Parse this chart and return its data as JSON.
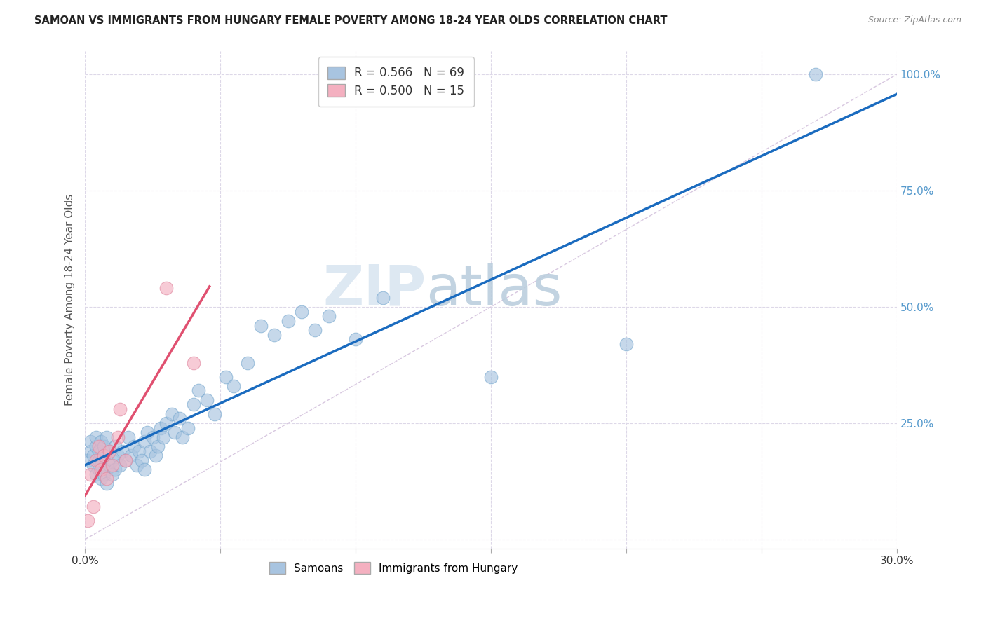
{
  "title": "SAMOAN VS IMMIGRANTS FROM HUNGARY FEMALE POVERTY AMONG 18-24 YEAR OLDS CORRELATION CHART",
  "source": "Source: ZipAtlas.com",
  "ylabel": "Female Poverty Among 18-24 Year Olds",
  "xlim": [
    0.0,
    0.3
  ],
  "ylim": [
    -0.02,
    1.05
  ],
  "xticks": [
    0.0,
    0.05,
    0.1,
    0.15,
    0.2,
    0.25,
    0.3
  ],
  "xticklabels": [
    "0.0%",
    "",
    "",
    "",
    "",
    "",
    "30.0%"
  ],
  "ytick_positions": [
    0.0,
    0.25,
    0.5,
    0.75,
    1.0
  ],
  "yticklabels": [
    "",
    "25.0%",
    "50.0%",
    "75.0%",
    "100.0%"
  ],
  "samoans_x": [
    0.001,
    0.002,
    0.002,
    0.003,
    0.003,
    0.004,
    0.004,
    0.004,
    0.005,
    0.005,
    0.005,
    0.006,
    0.006,
    0.006,
    0.007,
    0.007,
    0.007,
    0.008,
    0.008,
    0.008,
    0.009,
    0.009,
    0.01,
    0.01,
    0.011,
    0.011,
    0.012,
    0.013,
    0.014,
    0.015,
    0.016,
    0.017,
    0.018,
    0.019,
    0.02,
    0.021,
    0.022,
    0.022,
    0.023,
    0.024,
    0.025,
    0.026,
    0.027,
    0.028,
    0.029,
    0.03,
    0.032,
    0.033,
    0.035,
    0.036,
    0.038,
    0.04,
    0.042,
    0.045,
    0.048,
    0.052,
    0.055,
    0.06,
    0.065,
    0.07,
    0.075,
    0.08,
    0.085,
    0.09,
    0.1,
    0.11,
    0.15,
    0.2,
    0.27
  ],
  "samoans_y": [
    0.17,
    0.19,
    0.21,
    0.16,
    0.18,
    0.14,
    0.2,
    0.22,
    0.15,
    0.17,
    0.19,
    0.13,
    0.16,
    0.21,
    0.14,
    0.18,
    0.2,
    0.12,
    0.15,
    0.22,
    0.16,
    0.19,
    0.14,
    0.17,
    0.15,
    0.2,
    0.18,
    0.16,
    0.19,
    0.17,
    0.22,
    0.18,
    0.2,
    0.16,
    0.19,
    0.17,
    0.21,
    0.15,
    0.23,
    0.19,
    0.22,
    0.18,
    0.2,
    0.24,
    0.22,
    0.25,
    0.27,
    0.23,
    0.26,
    0.22,
    0.24,
    0.29,
    0.32,
    0.3,
    0.27,
    0.35,
    0.33,
    0.38,
    0.46,
    0.44,
    0.47,
    0.49,
    0.45,
    0.48,
    0.43,
    0.52,
    0.35,
    0.42,
    1.0
  ],
  "hungary_x": [
    0.001,
    0.002,
    0.003,
    0.004,
    0.005,
    0.006,
    0.007,
    0.008,
    0.009,
    0.01,
    0.012,
    0.013,
    0.015,
    0.03,
    0.04
  ],
  "hungary_y": [
    0.04,
    0.14,
    0.07,
    0.17,
    0.2,
    0.15,
    0.18,
    0.13,
    0.19,
    0.16,
    0.22,
    0.28,
    0.17,
    0.54,
    0.38
  ],
  "samoan_color": "#a8c4e0",
  "samoan_edge_color": "#7aaad0",
  "hungary_color": "#f4b0c0",
  "hungary_edge_color": "#e088a0",
  "samoan_line_color": "#1a6bbf",
  "hungary_line_color": "#e05070",
  "diagonal_color": "#d8c8e0",
  "R_samoan": "0.566",
  "N_samoan": "69",
  "R_hungary": "0.500",
  "N_hungary": "15",
  "legend_label_samoan": "Samoans",
  "legend_label_hungary": "Immigrants from Hungary",
  "watermark_zip": "ZIP",
  "watermark_atlas": "atlas",
  "background_color": "#ffffff",
  "grid_color": "#ddd8e8",
  "title_color": "#222222",
  "source_color": "#888888",
  "ylabel_color": "#555555",
  "ytick_color": "#5599cc",
  "xtick_color": "#333333"
}
